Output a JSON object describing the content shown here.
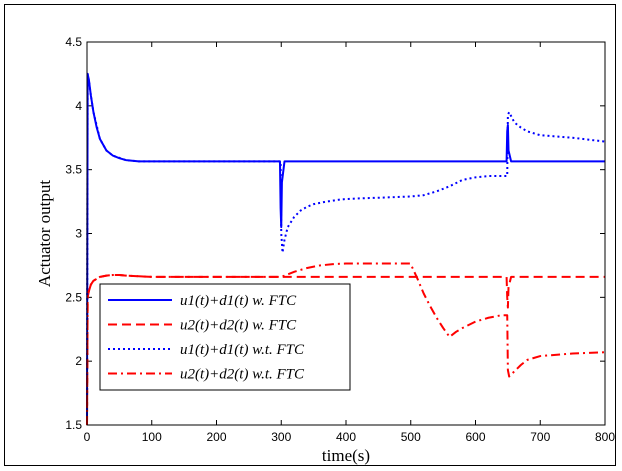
{
  "chart_data": {
    "type": "line",
    "title": "",
    "xlabel": "time(s)",
    "ylabel": "Actuator output",
    "xlim": [
      0,
      800
    ],
    "ylim": [
      1.5,
      4.5
    ],
    "xticks": [
      "0",
      "100",
      "200",
      "300",
      "400",
      "500",
      "600",
      "700",
      "800"
    ],
    "yticks": [
      "1.5",
      "2",
      "2.5",
      "3",
      "3.5",
      "4",
      "4.5"
    ],
    "grid": false,
    "legend_position": "bottom-left",
    "series": [
      {
        "name": "u1(t)+d1(t) w. FTC",
        "color": "#0000ff",
        "style": "solid",
        "x": [
          0,
          1,
          3,
          6,
          10,
          15,
          20,
          30,
          40,
          50,
          60,
          70,
          80,
          100,
          150,
          200,
          298,
          299,
          300,
          301,
          305,
          310,
          400,
          500,
          648,
          649,
          650,
          651,
          655,
          700,
          800
        ],
        "y": [
          1.5,
          4.25,
          4.2,
          4.08,
          3.95,
          3.83,
          3.74,
          3.65,
          3.61,
          3.59,
          3.575,
          3.57,
          3.565,
          3.565,
          3.565,
          3.565,
          3.565,
          3.2,
          3.05,
          3.4,
          3.565,
          3.565,
          3.565,
          3.565,
          3.565,
          3.8,
          3.85,
          3.65,
          3.565,
          3.565,
          3.565
        ]
      },
      {
        "name": "u2(t)+d2(t) w. FTC",
        "color": "#ff0000",
        "style": "dashed",
        "x": [
          0,
          1,
          3,
          6,
          10,
          20,
          30,
          40,
          50,
          60,
          80,
          100,
          200,
          300,
          400,
          500,
          648,
          649,
          650,
          651,
          655,
          700,
          800
        ],
        "y": [
          1.5,
          2.5,
          2.55,
          2.6,
          2.63,
          2.66,
          2.67,
          2.675,
          2.675,
          2.67,
          2.665,
          2.66,
          2.66,
          2.66,
          2.66,
          2.66,
          2.66,
          2.5,
          2.42,
          2.58,
          2.66,
          2.66,
          2.66
        ]
      },
      {
        "name": "u1(t)+d1(t) w.t. FTC",
        "color": "#0000ff",
        "style": "dotted",
        "x": [
          0,
          1,
          3,
          6,
          10,
          20,
          30,
          40,
          60,
          80,
          100,
          200,
          299,
          300,
          302,
          305,
          310,
          320,
          330,
          340,
          350,
          370,
          390,
          400,
          420,
          450,
          500,
          520,
          540,
          560,
          580,
          600,
          620,
          640,
          649,
          650,
          652,
          660,
          670,
          680,
          700,
          750,
          800
        ],
        "y": [
          1.5,
          4.25,
          4.2,
          4.08,
          3.95,
          3.74,
          3.65,
          3.61,
          3.575,
          3.565,
          3.565,
          3.565,
          3.565,
          3.0,
          2.85,
          2.95,
          3.05,
          3.13,
          3.18,
          3.21,
          3.23,
          3.25,
          3.265,
          3.27,
          3.275,
          3.28,
          3.29,
          3.3,
          3.33,
          3.37,
          3.42,
          3.44,
          3.45,
          3.45,
          3.45,
          3.93,
          3.95,
          3.87,
          3.83,
          3.8,
          3.77,
          3.75,
          3.72
        ]
      },
      {
        "name": "u2(t)+d2(t) w.t. FTC",
        "color": "#ff0000",
        "style": "dashdot",
        "x": [
          0,
          1,
          3,
          6,
          10,
          20,
          30,
          40,
          50,
          60,
          80,
          100,
          200,
          299,
          300,
          320,
          340,
          360,
          380,
          400,
          450,
          499,
          500,
          510,
          520,
          530,
          540,
          550,
          560,
          570,
          580,
          600,
          620,
          640,
          649,
          650,
          652,
          660,
          670,
          680,
          700,
          750,
          800
        ],
        "y": [
          1.5,
          2.5,
          2.55,
          2.6,
          2.63,
          2.66,
          2.67,
          2.675,
          2.675,
          2.67,
          2.665,
          2.66,
          2.66,
          2.66,
          2.66,
          2.7,
          2.73,
          2.75,
          2.76,
          2.765,
          2.765,
          2.765,
          2.76,
          2.65,
          2.53,
          2.43,
          2.34,
          2.26,
          2.19,
          2.23,
          2.26,
          2.31,
          2.34,
          2.36,
          2.36,
          1.93,
          1.88,
          1.92,
          1.97,
          2.01,
          2.04,
          2.06,
          2.07
        ]
      }
    ]
  }
}
